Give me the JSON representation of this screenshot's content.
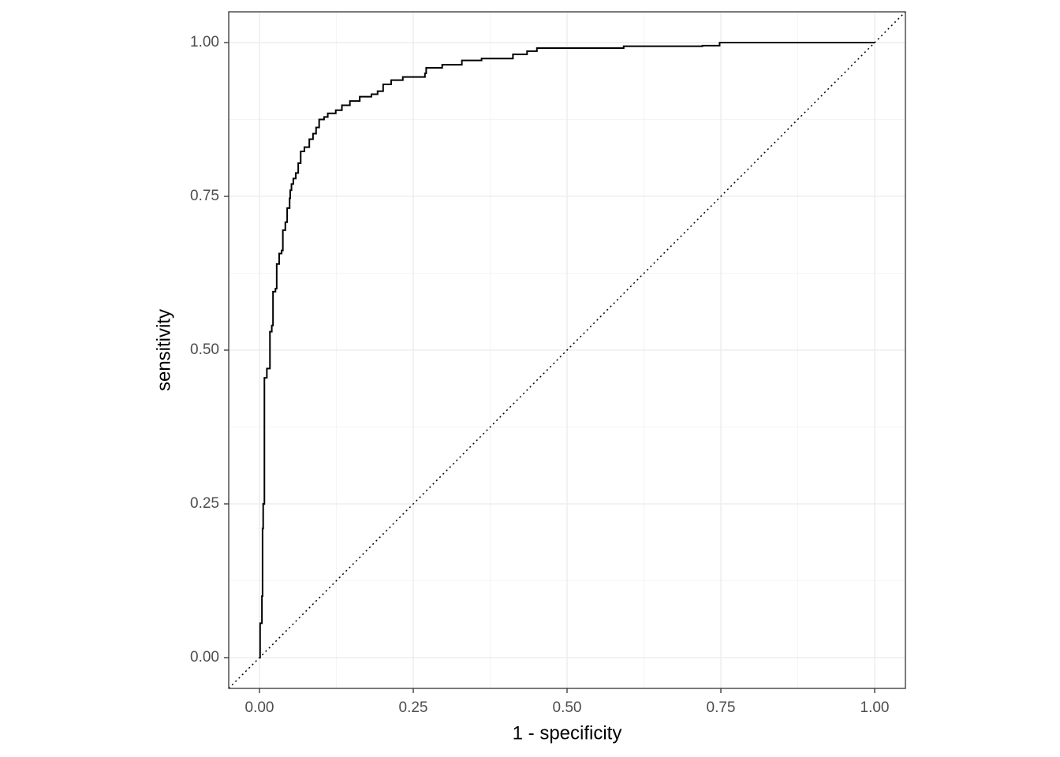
{
  "chart_data": {
    "type": "line",
    "x_label": "1 - specificity",
    "y_label": "sensitivity",
    "series": [
      {
        "color": "#000000",
        "x": [
          0,
          0.001,
          0.001,
          0.004,
          0.004,
          0.005,
          0.005,
          0.006,
          0.006,
          0.008,
          0.008,
          0.012,
          0.012,
          0.017,
          0.017,
          0.02,
          0.02,
          0.022,
          0.022,
          0.026,
          0.026,
          0.028,
          0.028,
          0.032,
          0.032,
          0.036,
          0.036,
          0.038,
          0.038,
          0.042,
          0.042,
          0.045,
          0.045,
          0.049,
          0.049,
          0.05,
          0.05,
          0.052,
          0.052,
          0.055,
          0.055,
          0.059,
          0.059,
          0.063,
          0.063,
          0.067,
          0.067,
          0.073,
          0.073,
          0.081,
          0.081,
          0.087,
          0.087,
          0.092,
          0.092,
          0.097,
          0.097,
          0.105,
          0.105,
          0.111,
          0.111,
          0.124,
          0.124,
          0.134,
          0.134,
          0.147,
          0.147,
          0.163,
          0.163,
          0.182,
          0.182,
          0.192,
          0.192,
          0.201,
          0.201,
          0.214,
          0.214,
          0.233,
          0.233,
          0.269,
          0.269,
          0.271,
          0.271,
          0.297,
          0.297,
          0.329,
          0.329,
          0.361,
          0.361,
          0.412,
          0.412,
          0.435,
          0.435,
          0.451,
          0.451,
          0.592,
          0.592,
          0.72,
          0.72,
          0.748,
          0.748,
          1.0
        ],
        "values": [
          0,
          0,
          0.056,
          0.056,
          0.1,
          0.1,
          0.21,
          0.21,
          0.25,
          0.25,
          0.455,
          0.455,
          0.47,
          0.47,
          0.53,
          0.53,
          0.54,
          0.54,
          0.595,
          0.595,
          0.6,
          0.6,
          0.64,
          0.64,
          0.657,
          0.657,
          0.662,
          0.662,
          0.695,
          0.695,
          0.708,
          0.708,
          0.731,
          0.731,
          0.747,
          0.747,
          0.76,
          0.76,
          0.77,
          0.77,
          0.779,
          0.779,
          0.788,
          0.788,
          0.804,
          0.804,
          0.823,
          0.823,
          0.83,
          0.83,
          0.843,
          0.843,
          0.852,
          0.852,
          0.862,
          0.862,
          0.875,
          0.875,
          0.879,
          0.879,
          0.885,
          0.885,
          0.89,
          0.89,
          0.898,
          0.898,
          0.905,
          0.905,
          0.912,
          0.912,
          0.916,
          0.916,
          0.921,
          0.921,
          0.932,
          0.932,
          0.939,
          0.939,
          0.944,
          0.944,
          0.95,
          0.95,
          0.959,
          0.959,
          0.964,
          0.964,
          0.971,
          0.971,
          0.974,
          0.974,
          0.981,
          0.981,
          0.986,
          0.986,
          0.991,
          0.991,
          0.994,
          0.994,
          0.995,
          0.995,
          1.0,
          1.0
        ]
      }
    ],
    "xlim": [
      -0.05,
      1.05
    ],
    "ylim": [
      -0.05,
      1.05
    ],
    "xticks": [
      {
        "value": 0,
        "label": "0.00"
      },
      {
        "value": 0.25,
        "label": "0.25"
      },
      {
        "value": 0.5,
        "label": "0.50"
      },
      {
        "value": 0.75,
        "label": "0.75"
      },
      {
        "value": 1,
        "label": "1.00"
      }
    ],
    "yticks": [
      {
        "value": 0,
        "label": "0.00"
      },
      {
        "value": 0.25,
        "label": "0.25"
      },
      {
        "value": 0.5,
        "label": "0.50"
      },
      {
        "value": 0.75,
        "label": "0.75"
      },
      {
        "value": 1,
        "label": "1.00"
      }
    ],
    "grid": true,
    "minor_grid": true,
    "diagonal": "dotted"
  }
}
